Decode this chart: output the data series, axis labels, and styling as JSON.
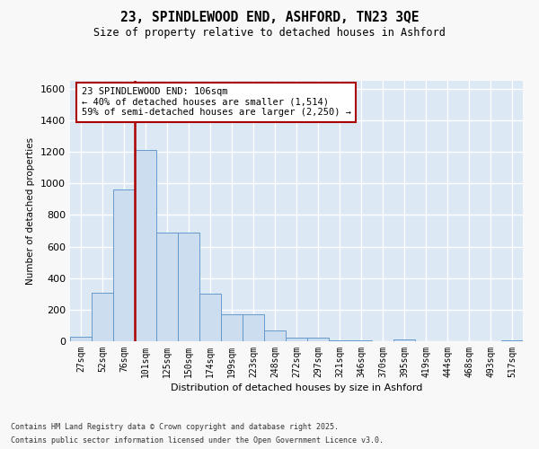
{
  "title_line1": "23, SPINDLEWOOD END, ASHFORD, TN23 3QE",
  "title_line2": "Size of property relative to detached houses in Ashford",
  "xlabel": "Distribution of detached houses by size in Ashford",
  "ylabel": "Number of detached properties",
  "bar_color": "#ccddf0",
  "bar_edge_color": "#6699cc",
  "bg_color": "#dde8f5",
  "grid_color": "#ffffff",
  "categories": [
    "27sqm",
    "52sqm",
    "76sqm",
    "101sqm",
    "125sqm",
    "150sqm",
    "174sqm",
    "199sqm",
    "223sqm",
    "248sqm",
    "272sqm",
    "297sqm",
    "321sqm",
    "346sqm",
    "370sqm",
    "395sqm",
    "419sqm",
    "444sqm",
    "468sqm",
    "493sqm",
    "517sqm"
  ],
  "values": [
    30,
    310,
    960,
    1210,
    690,
    690,
    300,
    170,
    170,
    70,
    25,
    25,
    5,
    5,
    0,
    10,
    0,
    0,
    0,
    0,
    5
  ],
  "vline_color": "#aa0000",
  "vline_x_index": 3,
  "annotation_text": "23 SPINDLEWOOD END: 106sqm\n← 40% of detached houses are smaller (1,514)\n59% of semi-detached houses are larger (2,250) →",
  "ylim_max": 1650,
  "yticks": [
    0,
    200,
    400,
    600,
    800,
    1000,
    1200,
    1400,
    1600
  ],
  "fig_bg": "#f8f8f8",
  "footer_line1": "Contains HM Land Registry data © Crown copyright and database right 2025.",
  "footer_line2": "Contains public sector information licensed under the Open Government Licence v3.0."
}
